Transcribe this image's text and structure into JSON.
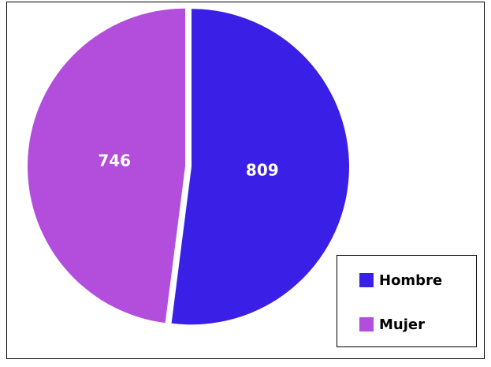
{
  "chart_data": {
    "type": "pie",
    "categories": [
      "Hombre",
      "Mujer"
    ],
    "values": [
      809,
      746
    ],
    "colors": [
      "#3a1fe6",
      "#b24ddc"
    ],
    "legend": "bottom-right"
  }
}
